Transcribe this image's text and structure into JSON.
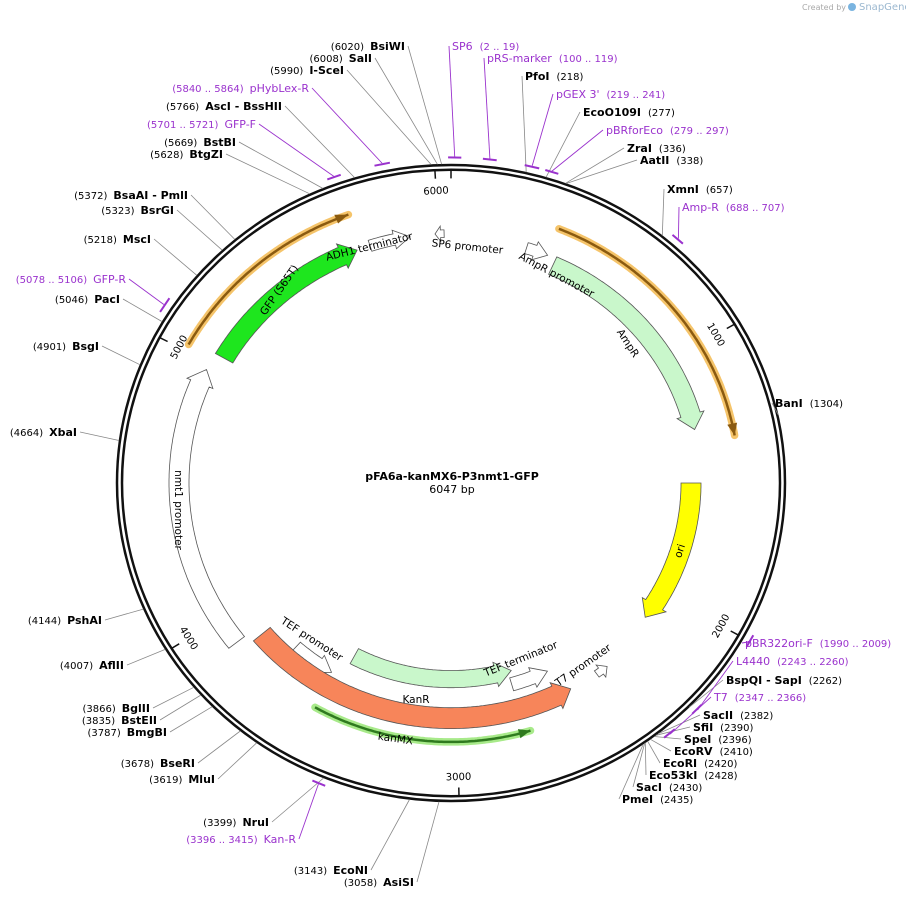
{
  "watermark": {
    "prefix": "Created by",
    "brand": "SnapGene"
  },
  "plasmid": {
    "name": "pFA6a-kanMX6-P3nmt1-GFP",
    "length": 6047,
    "length_label": "6047 bp"
  },
  "ticks": [
    1000,
    2000,
    3000,
    4000,
    5000,
    6000
  ],
  "features": [
    {
      "label": "GFP (S65T)"
    },
    {
      "label": "ADH1 terminator"
    },
    {
      "label": "SP6 promoter"
    },
    {
      "label": "AmpR promoter"
    },
    {
      "label": "AmpR"
    },
    {
      "label": "ori"
    },
    {
      "label": "T7 promoter"
    },
    {
      "label": "TEF terminator"
    },
    {
      "label": "KanR"
    },
    {
      "label": "TEF promoter"
    },
    {
      "label": "kanMX"
    },
    {
      "label": "nmt1 promoter"
    }
  ],
  "enzymes": [
    {
      "name": "BsiWI",
      "site": 6020,
      "site_label": "(6020)"
    },
    {
      "name": "SalI",
      "site": 6008,
      "site_label": "(6008)"
    },
    {
      "name": "I-SceI",
      "site": 5990,
      "site_label": "(5990)"
    },
    {
      "name": "AscI - BssHII",
      "site": 5766,
      "site_label": "(5766)"
    },
    {
      "name": "BstBI",
      "site": 5669,
      "site_label": "(5669)"
    },
    {
      "name": "BtgZI",
      "site": 5628,
      "site_label": "(5628)"
    },
    {
      "name": "BsaAI - PmlI",
      "site": 5372,
      "site_label": "(5372)"
    },
    {
      "name": "BsrGI",
      "site": 5323,
      "site_label": "(5323)"
    },
    {
      "name": "MscI",
      "site": 5218,
      "site_label": "(5218)"
    },
    {
      "name": "PacI",
      "site": 5046,
      "site_label": "(5046)"
    },
    {
      "name": "BsgI",
      "site": 4901,
      "site_label": "(4901)"
    },
    {
      "name": "XbaI",
      "site": 4664,
      "site_label": "(4664)"
    },
    {
      "name": "PshAI",
      "site": 4144,
      "site_label": "(4144)"
    },
    {
      "name": "AflII",
      "site": 4007,
      "site_label": "(4007)"
    },
    {
      "name": "BglII",
      "site": 3866,
      "site_label": "(3866)"
    },
    {
      "name": "BstEII",
      "site": 3835,
      "site_label": "(3835)"
    },
    {
      "name": "BmgBI",
      "site": 3787,
      "site_label": "(3787)"
    },
    {
      "name": "BseRI",
      "site": 3678,
      "site_label": "(3678)"
    },
    {
      "name": "MluI",
      "site": 3619,
      "site_label": "(3619)"
    },
    {
      "name": "NruI",
      "site": 3399,
      "site_label": "(3399)"
    },
    {
      "name": "EcoNI",
      "site": 3143,
      "site_label": "(3143)"
    },
    {
      "name": "AsiSI",
      "site": 3058,
      "site_label": "(3058)"
    },
    {
      "name": "PfoI",
      "site": 218,
      "site_label": "(218)"
    },
    {
      "name": "EcoO109I",
      "site": 277,
      "site_label": "(277)"
    },
    {
      "name": "ZraI",
      "site": 336,
      "site_label": "(336)"
    },
    {
      "name": "AatII",
      "site": 338,
      "site_label": "(338)"
    },
    {
      "name": "XmnI",
      "site": 657,
      "site_label": "(657)"
    },
    {
      "name": "BanI",
      "site": 1304,
      "site_label": "(1304)"
    },
    {
      "name": "BspQI - SapI",
      "site": 2262,
      "site_label": "(2262)"
    },
    {
      "name": "SacII",
      "site": 2382,
      "site_label": "(2382)"
    },
    {
      "name": "SfiI",
      "site": 2390,
      "site_label": "(2390)"
    },
    {
      "name": "SpeI",
      "site": 2396,
      "site_label": "(2396)"
    },
    {
      "name": "EcoRV",
      "site": 2410,
      "site_label": "(2410)"
    },
    {
      "name": "EcoRI",
      "site": 2420,
      "site_label": "(2420)"
    },
    {
      "name": "Eco53kI",
      "site": 2428,
      "site_label": "(2428)"
    },
    {
      "name": "SacI",
      "site": 2430,
      "site_label": "(2430)"
    },
    {
      "name": "PmeI",
      "site": 2435,
      "site_label": "(2435)"
    }
  ],
  "primers": [
    {
      "name": "pHybLex-R",
      "start": 5840,
      "end": 5864,
      "range_label": "(5840 .. 5864)"
    },
    {
      "name": "GFP-F",
      "start": 5701,
      "end": 5721,
      "range_label": "(5701 .. 5721)"
    },
    {
      "name": "GFP-R",
      "start": 5078,
      "end": 5106,
      "range_label": "(5078 .. 5106)"
    },
    {
      "name": "Kan-R",
      "start": 3396,
      "end": 3415,
      "range_label": "(3396 .. 3415)"
    },
    {
      "name": "SP6",
      "start": 2,
      "end": 19,
      "range_label": "(2 .. 19)"
    },
    {
      "name": "pRS-marker",
      "start": 100,
      "end": 119,
      "range_label": "(100 .. 119)"
    },
    {
      "name": "pGEX 3'",
      "start": 219,
      "end": 241,
      "range_label": "(219 .. 241)"
    },
    {
      "name": "pBRforEco",
      "start": 279,
      "end": 297,
      "range_label": "(279 .. 297)"
    },
    {
      "name": "Amp-R",
      "start": 688,
      "end": 707,
      "range_label": "(688 .. 707)"
    },
    {
      "name": "pBR322ori-F",
      "start": 1990,
      "end": 2009,
      "range_label": "(1990 .. 2009)"
    },
    {
      "name": "L4440",
      "start": 2243,
      "end": 2260,
      "range_label": "(2243 .. 2260)"
    },
    {
      "name": "T7",
      "start": 2347,
      "end": 2366,
      "range_label": "(2347 .. 2366)"
    }
  ]
}
